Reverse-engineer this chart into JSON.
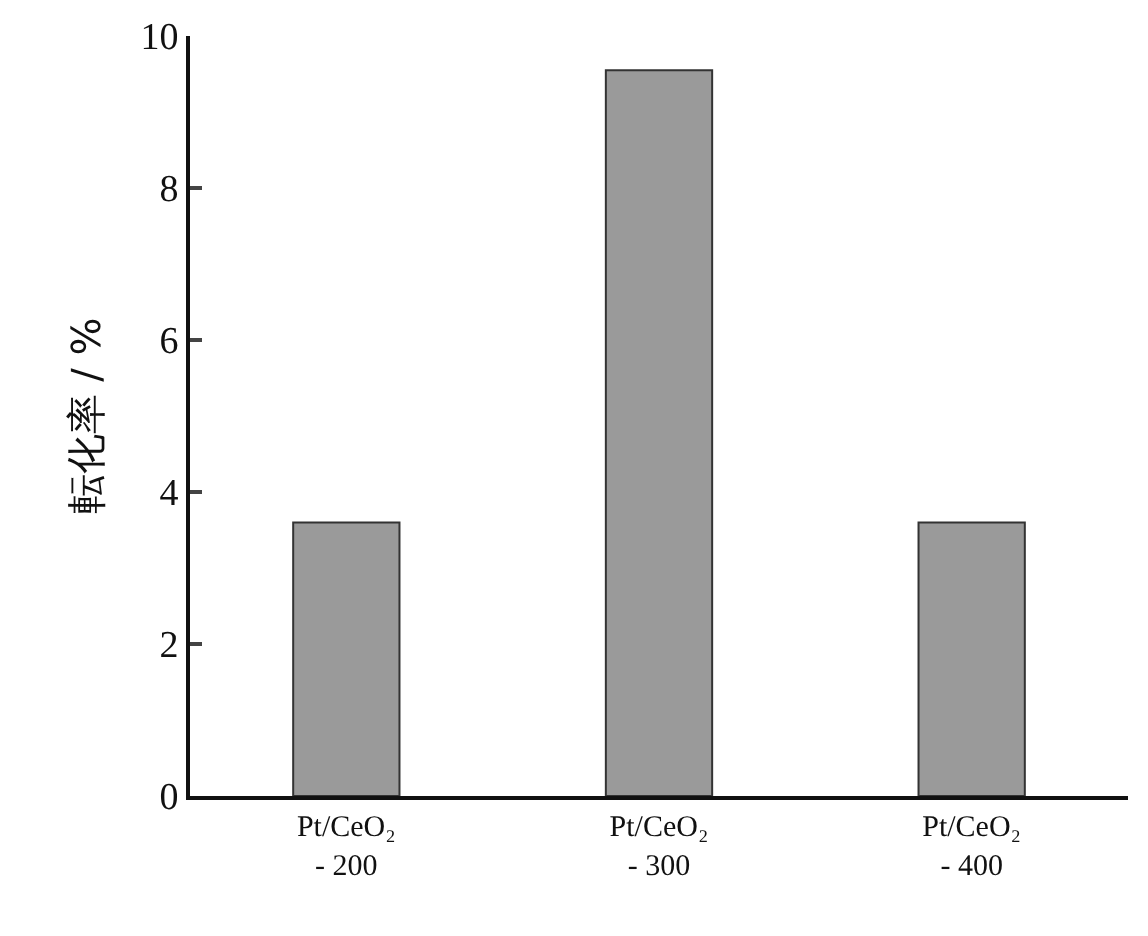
{
  "chart_data": {
    "type": "bar",
    "ylabel": "転化率 / %",
    "categories": [
      "Pt/CeO₂\n- 200",
      "Pt/CeO₂\n- 300",
      "Pt/CeO₂\n- 400"
    ],
    "values": [
      3.6,
      9.55,
      3.6
    ],
    "color": "#9a9a9a",
    "ylim": [
      0,
      10
    ],
    "yticks": [
      0,
      2,
      4,
      6,
      8,
      10
    ],
    "grid": false
  }
}
